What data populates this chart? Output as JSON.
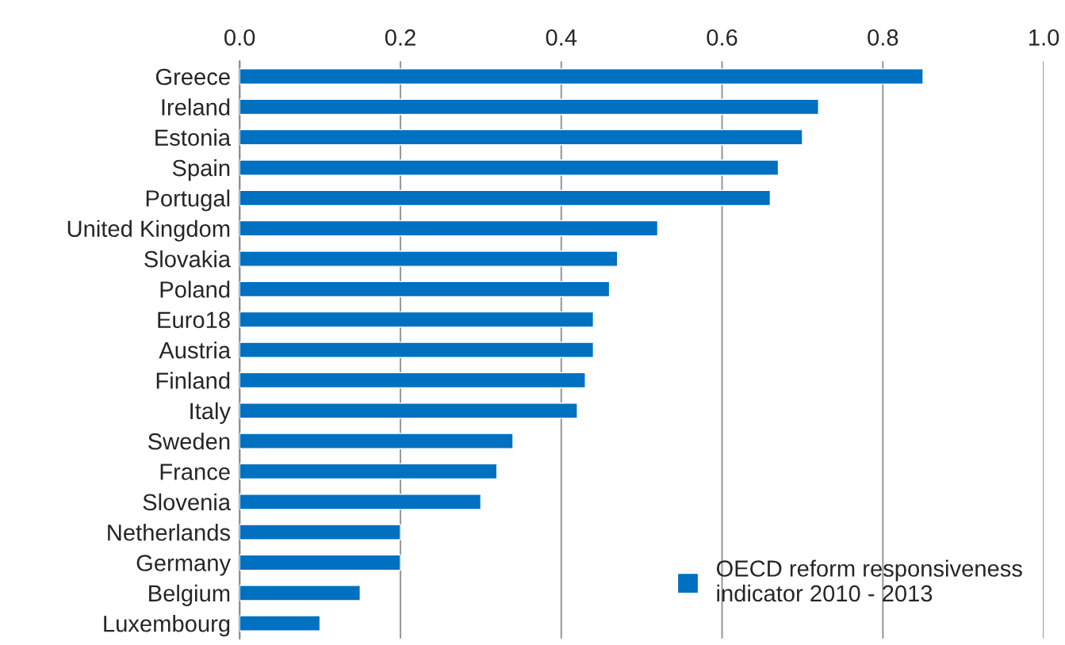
{
  "chart_data": {
    "type": "bar",
    "orientation": "horizontal",
    "categories": [
      "Greece",
      "Ireland",
      "Estonia",
      "Spain",
      "Portugal",
      "United Kingdom",
      "Slovakia",
      "Poland",
      "Euro18",
      "Austria",
      "Finland",
      "Italy",
      "Sweden",
      "France",
      "Slovenia",
      "Netherlands",
      "Germany",
      "Belgium",
      "Luxembourg"
    ],
    "series": [
      {
        "name": "OECD reform responsiveness indicator 2010 - 2013",
        "color": "#0070c0",
        "values": [
          0.85,
          0.72,
          0.7,
          0.67,
          0.66,
          0.52,
          0.47,
          0.46,
          0.44,
          0.44,
          0.43,
          0.42,
          0.34,
          0.32,
          0.3,
          0.2,
          0.2,
          0.15,
          0.1
        ]
      }
    ],
    "xlim": [
      0,
      1
    ],
    "xticks": [
      {
        "value": 0,
        "label": "0.0"
      },
      0.2,
      0.4,
      0.6,
      0.8,
      {
        "value": 1,
        "label": "1.0"
      }
    ],
    "grid": "x",
    "legend": "bottom right"
  }
}
